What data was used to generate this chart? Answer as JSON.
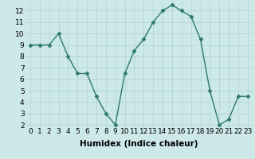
{
  "x": [
    0,
    1,
    2,
    3,
    4,
    5,
    6,
    7,
    8,
    9,
    10,
    11,
    12,
    13,
    14,
    15,
    16,
    17,
    18,
    19,
    20,
    21,
    22,
    23
  ],
  "y": [
    9,
    9,
    9,
    10,
    8,
    6.5,
    6.5,
    4.5,
    3,
    2,
    6.5,
    8.5,
    9.5,
    11,
    12,
    12.5,
    12,
    11.5,
    9.5,
    5,
    2,
    2.5,
    4.5,
    4.5
  ],
  "xlabel": "Humidex (Indice chaleur)",
  "xlim_min": -0.5,
  "xlim_max": 23.5,
  "ylim_min": 1.8,
  "ylim_max": 12.8,
  "yticks": [
    2,
    3,
    4,
    5,
    6,
    7,
    8,
    9,
    10,
    11,
    12
  ],
  "xticks": [
    0,
    1,
    2,
    3,
    4,
    5,
    6,
    7,
    8,
    9,
    10,
    11,
    12,
    13,
    14,
    15,
    16,
    17,
    18,
    19,
    20,
    21,
    22,
    23
  ],
  "line_color": "#2d7a6a",
  "marker": "D",
  "marker_size": 2.5,
  "bg_color": "#cce8e8",
  "grid_color": "#b0d0d0",
  "xlabel_fontsize": 7.5,
  "tick_fontsize": 6.5,
  "linewidth": 1.0
}
